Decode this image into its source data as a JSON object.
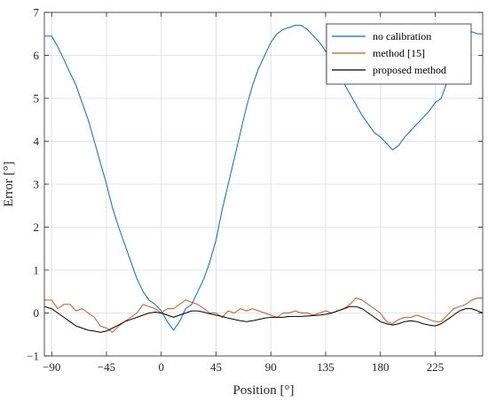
{
  "chart_data": {
    "type": "line",
    "title": "",
    "xlabel": "Position [°]",
    "ylabel": "Error [°]",
    "xlim": [
      -96,
      264
    ],
    "ylim": [
      -1,
      7
    ],
    "xticks": [
      -90,
      -45,
      0,
      45,
      90,
      135,
      180,
      225
    ],
    "xtick_labels": [
      "−90",
      "−45",
      "0",
      "45",
      "90",
      "135",
      "180",
      "225"
    ],
    "yticks": [
      -1,
      0,
      1,
      2,
      3,
      4,
      5,
      6,
      7
    ],
    "ytick_labels": [
      "−1",
      "0",
      "1",
      "2",
      "3",
      "4",
      "5",
      "6",
      "7"
    ],
    "grid": true,
    "legend_position": "top-right",
    "series": [
      {
        "name": "no calibration",
        "color": "#0072BD",
        "points": [
          [
            -96,
            6.45
          ],
          [
            -90,
            6.45
          ],
          [
            -85,
            6.2
          ],
          [
            -80,
            5.9
          ],
          [
            -75,
            5.6
          ],
          [
            -70,
            5.3
          ],
          [
            -65,
            4.9
          ],
          [
            -60,
            4.5
          ],
          [
            -55,
            4.0
          ],
          [
            -50,
            3.5
          ],
          [
            -45,
            3.0
          ],
          [
            -40,
            2.45
          ],
          [
            -35,
            2.0
          ],
          [
            -30,
            1.6
          ],
          [
            -25,
            1.2
          ],
          [
            -20,
            0.8
          ],
          [
            -15,
            0.5
          ],
          [
            -10,
            0.3
          ],
          [
            -5,
            0.2
          ],
          [
            0,
            0.05
          ],
          [
            5,
            -0.2
          ],
          [
            10,
            -0.4
          ],
          [
            15,
            -0.2
          ],
          [
            20,
            0.1
          ],
          [
            25,
            0.2
          ],
          [
            30,
            0.5
          ],
          [
            35,
            0.8
          ],
          [
            40,
            1.2
          ],
          [
            45,
            1.7
          ],
          [
            50,
            2.4
          ],
          [
            55,
            3.0
          ],
          [
            60,
            3.6
          ],
          [
            65,
            4.2
          ],
          [
            70,
            4.8
          ],
          [
            75,
            5.3
          ],
          [
            80,
            5.7
          ],
          [
            85,
            6.0
          ],
          [
            90,
            6.3
          ],
          [
            95,
            6.5
          ],
          [
            100,
            6.6
          ],
          [
            105,
            6.65
          ],
          [
            110,
            6.7
          ],
          [
            115,
            6.7
          ],
          [
            120,
            6.6
          ],
          [
            125,
            6.45
          ],
          [
            130,
            6.3
          ],
          [
            135,
            6.1
          ],
          [
            140,
            5.85
          ],
          [
            145,
            5.6
          ],
          [
            150,
            5.35
          ],
          [
            155,
            5.1
          ],
          [
            160,
            4.85
          ],
          [
            165,
            4.6
          ],
          [
            170,
            4.4
          ],
          [
            175,
            4.2
          ],
          [
            180,
            4.1
          ],
          [
            185,
            3.95
          ],
          [
            190,
            3.8
          ],
          [
            195,
            3.9
          ],
          [
            200,
            4.1
          ],
          [
            205,
            4.25
          ],
          [
            210,
            4.4
          ],
          [
            215,
            4.55
          ],
          [
            220,
            4.7
          ],
          [
            225,
            4.9
          ],
          [
            230,
            5.0
          ],
          [
            235,
            5.4
          ],
          [
            240,
            6.0
          ],
          [
            245,
            6.4
          ],
          [
            250,
            6.5
          ],
          [
            255,
            6.55
          ],
          [
            260,
            6.5
          ],
          [
            264,
            6.5
          ]
        ]
      },
      {
        "name": "method [15]",
        "color": "#D95319",
        "points": [
          [
            -96,
            0.3
          ],
          [
            -90,
            0.3
          ],
          [
            -85,
            0.1
          ],
          [
            -80,
            0.2
          ],
          [
            -75,
            0.2
          ],
          [
            -70,
            0.05
          ],
          [
            -65,
            0.1
          ],
          [
            -60,
            0.0
          ],
          [
            -55,
            -0.1
          ],
          [
            -50,
            -0.3
          ],
          [
            -45,
            -0.35
          ],
          [
            -40,
            -0.45
          ],
          [
            -35,
            -0.3
          ],
          [
            -30,
            -0.2
          ],
          [
            -25,
            -0.1
          ],
          [
            -20,
            0.0
          ],
          [
            -15,
            0.2
          ],
          [
            -10,
            0.15
          ],
          [
            -5,
            0.1
          ],
          [
            0,
            0.0
          ],
          [
            5,
            0.1
          ],
          [
            10,
            0.1
          ],
          [
            15,
            0.2
          ],
          [
            20,
            0.3
          ],
          [
            25,
            0.25
          ],
          [
            30,
            0.2
          ],
          [
            35,
            0.1
          ],
          [
            40,
            0.0
          ],
          [
            45,
            0.0
          ],
          [
            50,
            -0.1
          ],
          [
            55,
            0.05
          ],
          [
            60,
            0.0
          ],
          [
            65,
            0.1
          ],
          [
            70,
            0.05
          ],
          [
            75,
            0.1
          ],
          [
            80,
            0.05
          ],
          [
            85,
            0.0
          ],
          [
            90,
            -0.05
          ],
          [
            95,
            -0.1
          ],
          [
            100,
            0.0
          ],
          [
            105,
            0.0
          ],
          [
            110,
            0.05
          ],
          [
            115,
            0.0
          ],
          [
            120,
            0.0
          ],
          [
            125,
            -0.05
          ],
          [
            130,
            0.0
          ],
          [
            135,
            0.05
          ],
          [
            140,
            0.0
          ],
          [
            145,
            0.05
          ],
          [
            150,
            0.1
          ],
          [
            155,
            0.2
          ],
          [
            160,
            0.35
          ],
          [
            165,
            0.3
          ],
          [
            170,
            0.2
          ],
          [
            175,
            0.1
          ],
          [
            180,
            0.0
          ],
          [
            185,
            -0.2
          ],
          [
            190,
            -0.25
          ],
          [
            195,
            -0.15
          ],
          [
            200,
            -0.1
          ],
          [
            205,
            -0.1
          ],
          [
            210,
            -0.05
          ],
          [
            215,
            -0.1
          ],
          [
            220,
            -0.15
          ],
          [
            225,
            -0.2
          ],
          [
            230,
            -0.2
          ],
          [
            235,
            -0.05
          ],
          [
            240,
            0.1
          ],
          [
            245,
            0.15
          ],
          [
            250,
            0.2
          ],
          [
            255,
            0.3
          ],
          [
            260,
            0.35
          ],
          [
            264,
            0.35
          ]
        ]
      },
      {
        "name": "proposed method",
        "color": "#000000",
        "points": [
          [
            -96,
            0.15
          ],
          [
            -90,
            0.1
          ],
          [
            -85,
            0.0
          ],
          [
            -80,
            -0.1
          ],
          [
            -75,
            -0.2
          ],
          [
            -70,
            -0.3
          ],
          [
            -65,
            -0.35
          ],
          [
            -60,
            -0.4
          ],
          [
            -55,
            -0.42
          ],
          [
            -50,
            -0.45
          ],
          [
            -45,
            -0.42
          ],
          [
            -40,
            -0.35
          ],
          [
            -35,
            -0.28
          ],
          [
            -30,
            -0.2
          ],
          [
            -25,
            -0.15
          ],
          [
            -20,
            -0.1
          ],
          [
            -15,
            -0.05
          ],
          [
            -10,
            0.0
          ],
          [
            -5,
            0.02
          ],
          [
            0,
            0.0
          ],
          [
            5,
            -0.05
          ],
          [
            10,
            -0.1
          ],
          [
            15,
            -0.05
          ],
          [
            20,
            0.0
          ],
          [
            25,
            0.05
          ],
          [
            30,
            0.05
          ],
          [
            35,
            0.02
          ],
          [
            40,
            -0.02
          ],
          [
            45,
            -0.05
          ],
          [
            50,
            -0.08
          ],
          [
            55,
            -0.12
          ],
          [
            60,
            -0.15
          ],
          [
            65,
            -0.18
          ],
          [
            70,
            -0.2
          ],
          [
            75,
            -0.18
          ],
          [
            80,
            -0.15
          ],
          [
            85,
            -0.12
          ],
          [
            90,
            -0.1
          ],
          [
            95,
            -0.1
          ],
          [
            100,
            -0.1
          ],
          [
            105,
            -0.08
          ],
          [
            110,
            -0.08
          ],
          [
            115,
            -0.08
          ],
          [
            120,
            -0.07
          ],
          [
            125,
            -0.06
          ],
          [
            130,
            -0.05
          ],
          [
            135,
            -0.03
          ],
          [
            140,
            0.0
          ],
          [
            145,
            0.05
          ],
          [
            150,
            0.1
          ],
          [
            155,
            0.15
          ],
          [
            160,
            0.15
          ],
          [
            165,
            0.1
          ],
          [
            170,
            0.0
          ],
          [
            175,
            -0.1
          ],
          [
            180,
            -0.2
          ],
          [
            185,
            -0.25
          ],
          [
            190,
            -0.28
          ],
          [
            195,
            -0.25
          ],
          [
            200,
            -0.2
          ],
          [
            205,
            -0.18
          ],
          [
            210,
            -0.2
          ],
          [
            215,
            -0.25
          ],
          [
            220,
            -0.28
          ],
          [
            225,
            -0.3
          ],
          [
            230,
            -0.25
          ],
          [
            235,
            -0.15
          ],
          [
            240,
            -0.05
          ],
          [
            245,
            0.05
          ],
          [
            250,
            0.1
          ],
          [
            255,
            0.1
          ],
          [
            260,
            0.05
          ],
          [
            264,
            0.0
          ]
        ]
      }
    ]
  }
}
